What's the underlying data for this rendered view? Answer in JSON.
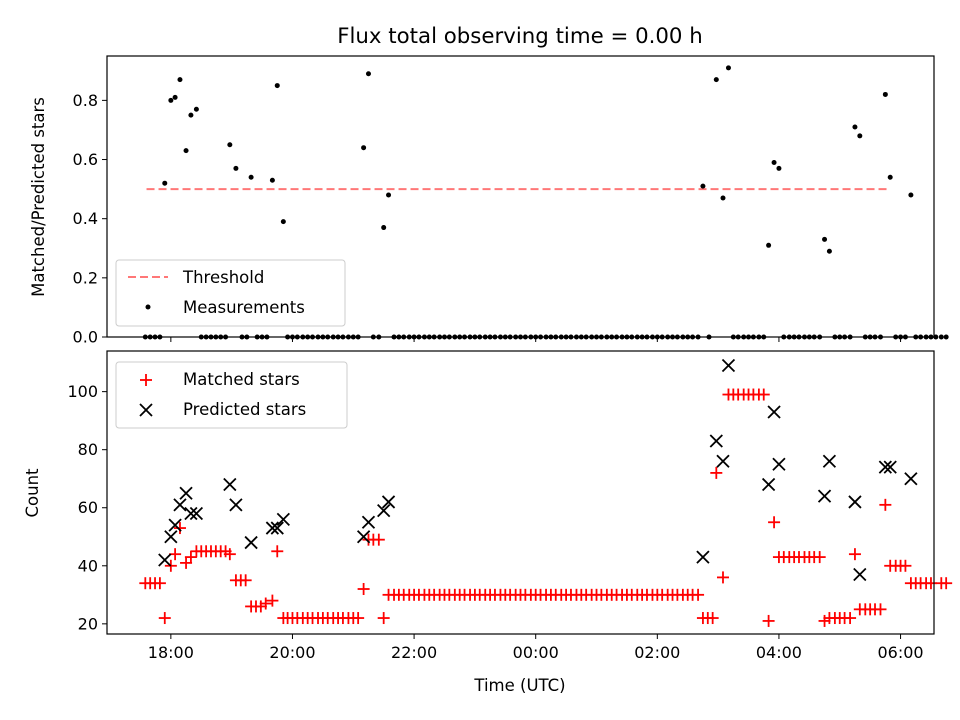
{
  "chart_data": [
    {
      "type": "scatter",
      "title": "Flux total observing time = 0.00 h",
      "ylabel": "Matched/Predicted stars",
      "xlim": [
        16.95,
        30.55
      ],
      "ylim": [
        0,
        0.95
      ],
      "yticks": [
        0.0,
        0.2,
        0.4,
        0.6,
        0.8
      ],
      "ytick_labels": [
        "0.0",
        "0.2",
        "0.4",
        "0.6",
        "0.8"
      ],
      "threshold": {
        "name": "Threshold",
        "value": 0.5,
        "x_range": [
          17.6,
          29.83
        ],
        "color": "#ff7777"
      },
      "legend": {
        "location": "lower left",
        "entries": [
          "Threshold",
          "Measurements"
        ]
      },
      "series": [
        {
          "name": "Measurements",
          "marker": "dot",
          "color": "#000000",
          "points": [
            [
              17.9,
              0.52
            ],
            [
              18.0,
              0.8
            ],
            [
              18.07,
              0.81
            ],
            [
              18.15,
              0.87
            ],
            [
              18.25,
              0.63
            ],
            [
              18.33,
              0.75
            ],
            [
              18.42,
              0.77
            ],
            [
              18.97,
              0.65
            ],
            [
              19.07,
              0.57
            ],
            [
              19.32,
              0.54
            ],
            [
              19.67,
              0.53
            ],
            [
              19.75,
              0.85
            ],
            [
              19.85,
              0.39
            ],
            [
              21.17,
              0.64
            ],
            [
              21.25,
              0.89
            ],
            [
              21.5,
              0.37
            ],
            [
              21.58,
              0.48
            ],
            [
              26.75,
              0.51
            ],
            [
              26.97,
              0.87
            ],
            [
              27.08,
              0.47
            ],
            [
              27.17,
              0.91
            ],
            [
              27.83,
              0.31
            ],
            [
              27.92,
              0.59
            ],
            [
              28.0,
              0.57
            ],
            [
              28.75,
              0.33
            ],
            [
              28.83,
              0.29
            ],
            [
              29.25,
              0.71
            ],
            [
              29.33,
              0.68
            ],
            [
              29.75,
              0.82
            ],
            [
              29.83,
              0.54
            ],
            [
              30.17,
              0.48
            ]
          ],
          "zero_points_x": [
            17.58,
            17.66,
            17.74,
            17.82,
            18.5,
            18.58,
            18.66,
            18.74,
            18.82,
            18.9,
            19.17,
            19.25,
            19.42,
            19.5,
            19.58,
            19.92,
            20.0,
            20.08,
            20.17,
            20.25,
            20.33,
            20.42,
            20.5,
            20.58,
            20.67,
            20.75,
            20.83,
            20.92,
            21.0,
            21.08,
            21.33,
            21.42,
            21.67,
            21.75,
            21.83,
            21.92,
            22.0,
            22.08,
            22.17,
            22.25,
            22.33,
            22.42,
            22.5,
            22.58,
            22.67,
            22.75,
            22.83,
            22.92,
            23.0,
            23.08,
            23.17,
            23.25,
            23.33,
            23.42,
            23.5,
            23.58,
            23.67,
            23.75,
            23.83,
            23.92,
            24.0,
            24.08,
            24.17,
            24.25,
            24.33,
            24.42,
            24.5,
            24.58,
            24.67,
            24.75,
            24.83,
            24.92,
            25.0,
            25.08,
            25.17,
            25.25,
            25.33,
            25.42,
            25.5,
            25.58,
            25.67,
            25.75,
            25.83,
            25.92,
            26.0,
            26.08,
            26.17,
            26.25,
            26.33,
            26.42,
            26.5,
            26.58,
            26.67,
            26.85,
            27.25,
            27.33,
            27.42,
            27.5,
            27.58,
            27.67,
            27.75,
            28.08,
            28.17,
            28.25,
            28.33,
            28.42,
            28.5,
            28.58,
            28.67,
            28.92,
            29.0,
            29.08,
            29.17,
            29.42,
            29.5,
            29.58,
            29.67,
            29.92,
            30.0,
            30.08,
            30.25,
            30.33,
            30.42,
            30.5,
            30.58,
            30.67,
            30.75
          ]
        }
      ]
    },
    {
      "type": "scatter",
      "xlabel": "Time (UTC)",
      "ylabel": "Count",
      "xlim": [
        16.95,
        30.55
      ],
      "ylim": [
        16.5,
        114
      ],
      "xticks": [
        18,
        20,
        22,
        24,
        26,
        28,
        30
      ],
      "xtick_labels": [
        "18:00",
        "20:00",
        "22:00",
        "00:00",
        "02:00",
        "04:00",
        "06:00"
      ],
      "yticks": [
        20,
        40,
        60,
        80,
        100
      ],
      "ytick_labels": [
        "20",
        "40",
        "60",
        "80",
        "100"
      ],
      "legend": {
        "location": "upper left",
        "entries": [
          "Matched stars",
          "Predicted stars"
        ]
      },
      "series": [
        {
          "name": "Matched stars",
          "marker": "plus",
          "color": "#ff0000",
          "points": [
            [
              17.58,
              34
            ],
            [
              17.66,
              34
            ],
            [
              17.74,
              34
            ],
            [
              17.82,
              34
            ],
            [
              17.9,
              22
            ],
            [
              18.0,
              40
            ],
            [
              18.07,
              44
            ],
            [
              18.15,
              53
            ],
            [
              18.25,
              41
            ],
            [
              18.33,
              43
            ],
            [
              18.42,
              45
            ],
            [
              18.5,
              45
            ],
            [
              18.58,
              45
            ],
            [
              18.66,
              45
            ],
            [
              18.74,
              45
            ],
            [
              18.82,
              45
            ],
            [
              18.9,
              45
            ],
            [
              18.97,
              44
            ],
            [
              19.07,
              35
            ],
            [
              19.15,
              35
            ],
            [
              19.23,
              35
            ],
            [
              19.32,
              26
            ],
            [
              19.4,
              26
            ],
            [
              19.48,
              26
            ],
            [
              19.56,
              27
            ],
            [
              19.67,
              28
            ],
            [
              19.75,
              45
            ],
            [
              19.85,
              22
            ],
            [
              19.92,
              22
            ],
            [
              20.0,
              22
            ],
            [
              20.08,
              22
            ],
            [
              20.17,
              22
            ],
            [
              20.25,
              22
            ],
            [
              20.33,
              22
            ],
            [
              20.42,
              22
            ],
            [
              20.5,
              22
            ],
            [
              20.58,
              22
            ],
            [
              20.67,
              22
            ],
            [
              20.75,
              22
            ],
            [
              20.83,
              22
            ],
            [
              20.92,
              22
            ],
            [
              21.0,
              22
            ],
            [
              21.08,
              22
            ],
            [
              21.17,
              32
            ],
            [
              21.25,
              49
            ],
            [
              21.33,
              49
            ],
            [
              21.42,
              49
            ],
            [
              21.5,
              22
            ],
            [
              21.58,
              30
            ],
            [
              21.67,
              30
            ],
            [
              21.75,
              30
            ],
            [
              21.83,
              30
            ],
            [
              21.92,
              30
            ],
            [
              22.0,
              30
            ],
            [
              22.08,
              30
            ],
            [
              22.17,
              30
            ],
            [
              22.25,
              30
            ],
            [
              22.33,
              30
            ],
            [
              22.42,
              30
            ],
            [
              22.5,
              30
            ],
            [
              22.58,
              30
            ],
            [
              22.67,
              30
            ],
            [
              22.75,
              30
            ],
            [
              22.83,
              30
            ],
            [
              22.92,
              30
            ],
            [
              23.0,
              30
            ],
            [
              23.08,
              30
            ],
            [
              23.17,
              30
            ],
            [
              23.25,
              30
            ],
            [
              23.33,
              30
            ],
            [
              23.42,
              30
            ],
            [
              23.5,
              30
            ],
            [
              23.58,
              30
            ],
            [
              23.67,
              30
            ],
            [
              23.75,
              30
            ],
            [
              23.83,
              30
            ],
            [
              23.92,
              30
            ],
            [
              24.0,
              30
            ],
            [
              24.08,
              30
            ],
            [
              24.17,
              30
            ],
            [
              24.25,
              30
            ],
            [
              24.33,
              30
            ],
            [
              24.42,
              30
            ],
            [
              24.5,
              30
            ],
            [
              24.58,
              30
            ],
            [
              24.67,
              30
            ],
            [
              24.75,
              30
            ],
            [
              24.83,
              30
            ],
            [
              24.92,
              30
            ],
            [
              25.0,
              30
            ],
            [
              25.08,
              30
            ],
            [
              25.17,
              30
            ],
            [
              25.25,
              30
            ],
            [
              25.33,
              30
            ],
            [
              25.42,
              30
            ],
            [
              25.5,
              30
            ],
            [
              25.58,
              30
            ],
            [
              25.67,
              30
            ],
            [
              25.75,
              30
            ],
            [
              25.83,
              30
            ],
            [
              25.92,
              30
            ],
            [
              26.0,
              30
            ],
            [
              26.08,
              30
            ],
            [
              26.17,
              30
            ],
            [
              26.25,
              30
            ],
            [
              26.33,
              30
            ],
            [
              26.42,
              30
            ],
            [
              26.5,
              30
            ],
            [
              26.58,
              30
            ],
            [
              26.67,
              30
            ],
            [
              26.75,
              22
            ],
            [
              26.83,
              22
            ],
            [
              26.91,
              22
            ],
            [
              26.97,
              72
            ],
            [
              27.08,
              36
            ],
            [
              27.17,
              99
            ],
            [
              27.25,
              99
            ],
            [
              27.33,
              99
            ],
            [
              27.42,
              99
            ],
            [
              27.5,
              99
            ],
            [
              27.58,
              99
            ],
            [
              27.67,
              99
            ],
            [
              27.75,
              99
            ],
            [
              27.83,
              21
            ],
            [
              27.92,
              55
            ],
            [
              28.0,
              43
            ],
            [
              28.08,
              43
            ],
            [
              28.17,
              43
            ],
            [
              28.25,
              43
            ],
            [
              28.33,
              43
            ],
            [
              28.42,
              43
            ],
            [
              28.5,
              43
            ],
            [
              28.58,
              43
            ],
            [
              28.67,
              43
            ],
            [
              28.75,
              21
            ],
            [
              28.83,
              22
            ],
            [
              28.92,
              22
            ],
            [
              29.0,
              22
            ],
            [
              29.08,
              22
            ],
            [
              29.17,
              22
            ],
            [
              29.25,
              44
            ],
            [
              29.33,
              25
            ],
            [
              29.42,
              25
            ],
            [
              29.5,
              25
            ],
            [
              29.58,
              25
            ],
            [
              29.67,
              25
            ],
            [
              29.75,
              61
            ],
            [
              29.83,
              40
            ],
            [
              29.92,
              40
            ],
            [
              30.0,
              40
            ],
            [
              30.08,
              40
            ],
            [
              30.17,
              34
            ],
            [
              30.25,
              34
            ],
            [
              30.33,
              34
            ],
            [
              30.42,
              34
            ],
            [
              30.5,
              34
            ],
            [
              30.67,
              34
            ],
            [
              30.75,
              34
            ]
          ]
        },
        {
          "name": "Predicted stars",
          "marker": "x",
          "color": "#000000",
          "points": [
            [
              17.9,
              42
            ],
            [
              18.0,
              50
            ],
            [
              18.07,
              54
            ],
            [
              18.15,
              61
            ],
            [
              18.25,
              65
            ],
            [
              18.33,
              58
            ],
            [
              18.42,
              58
            ],
            [
              18.97,
              68
            ],
            [
              19.07,
              61
            ],
            [
              19.32,
              48
            ],
            [
              19.67,
              53
            ],
            [
              19.75,
              53
            ],
            [
              19.85,
              56
            ],
            [
              21.17,
              50
            ],
            [
              21.25,
              55
            ],
            [
              21.5,
              59
            ],
            [
              21.58,
              62
            ],
            [
              26.75,
              43
            ],
            [
              26.97,
              83
            ],
            [
              27.08,
              76
            ],
            [
              27.17,
              109
            ],
            [
              27.83,
              68
            ],
            [
              27.92,
              93
            ],
            [
              28.0,
              75
            ],
            [
              28.75,
              64
            ],
            [
              28.83,
              76
            ],
            [
              29.25,
              62
            ],
            [
              29.33,
              37
            ],
            [
              29.75,
              74
            ],
            [
              29.83,
              74
            ],
            [
              30.17,
              70
            ]
          ]
        }
      ]
    }
  ]
}
